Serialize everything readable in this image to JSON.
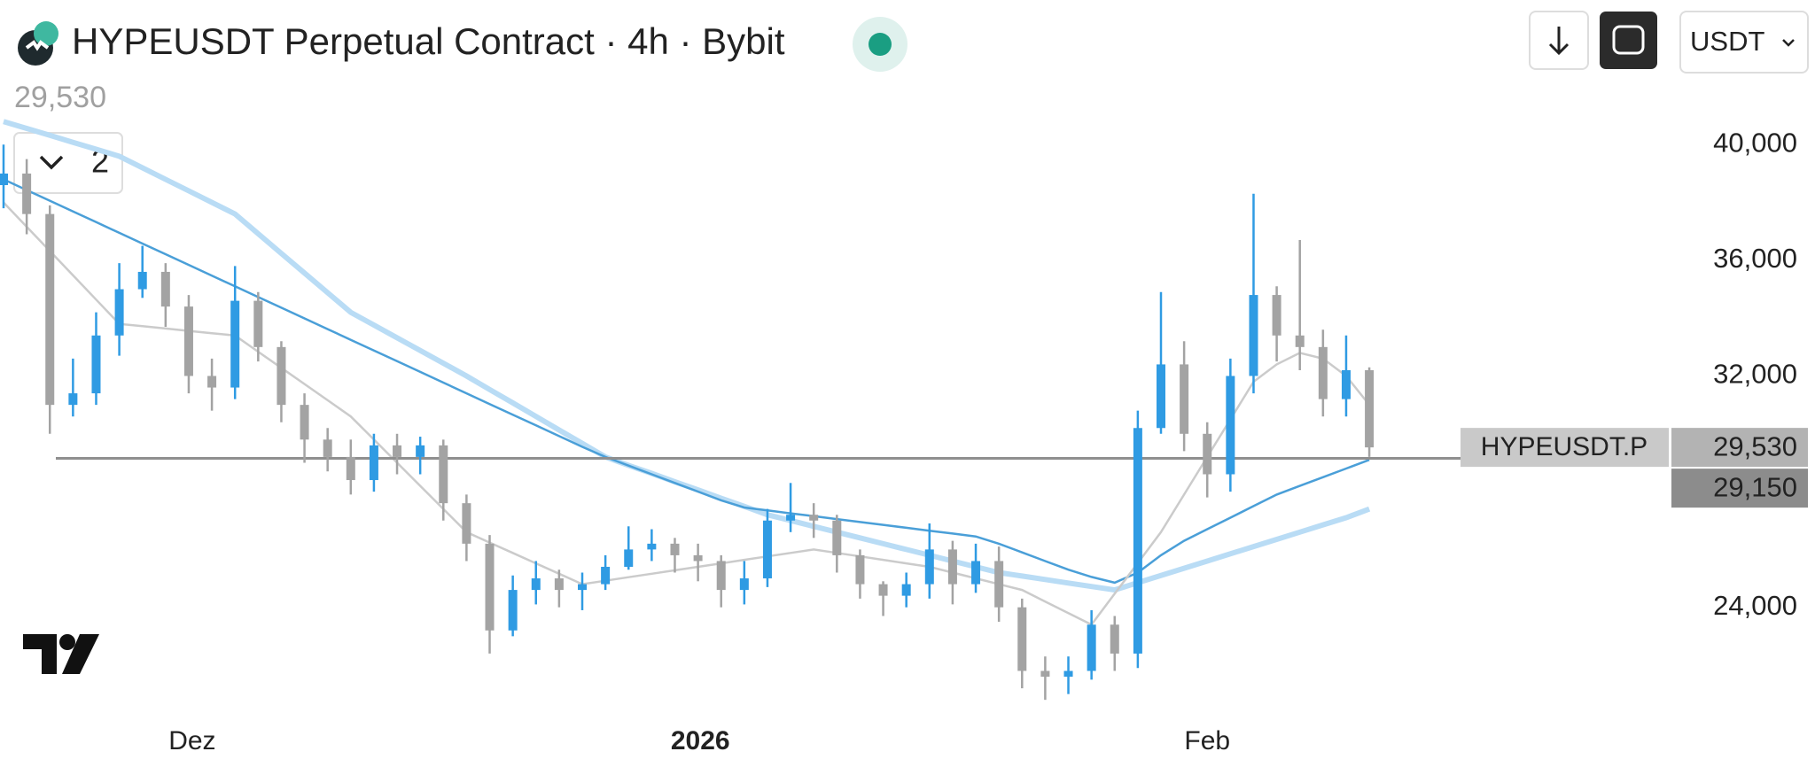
{
  "header": {
    "title": "HYPEUSDT Perpetual Contract · 4h · Bybit",
    "currency": "USDT",
    "indicator_count": "2"
  },
  "chart_data": {
    "type": "candlestick",
    "open": [
      38600,
      39000,
      37600,
      31000,
      31400,
      33400,
      35000,
      35600,
      34400,
      32000,
      31600,
      34600,
      33000,
      31000,
      29800,
      29200,
      28400,
      29600,
      29200,
      29600,
      27600,
      26200,
      23200,
      24600,
      25000,
      24600,
      24800,
      25400,
      26000,
      26200,
      25800,
      25600,
      24600,
      25000,
      27000,
      27200,
      27000,
      25800,
      24800,
      24400,
      24800,
      26000,
      24800,
      25600,
      24000,
      21800,
      21600,
      21800,
      23400,
      22400,
      30200,
      32400,
      30000,
      28600,
      32000,
      34800,
      33400,
      33000,
      31200,
      32200
    ],
    "high": [
      40000,
      39500,
      37900,
      32600,
      34200,
      35900,
      36500,
      35900,
      34800,
      32600,
      35800,
      34900,
      33200,
      31400,
      30200,
      29800,
      30000,
      30000,
      29900,
      29800,
      27900,
      26500,
      25100,
      25600,
      25300,
      25200,
      25800,
      26800,
      26700,
      26400,
      26200,
      25800,
      25600,
      27400,
      28300,
      27600,
      27200,
      26000,
      24900,
      25200,
      26900,
      26300,
      26200,
      26100,
      24300,
      22300,
      22300,
      23900,
      23700,
      30800,
      34900,
      33200,
      30400,
      32600,
      38300,
      35100,
      36700,
      33600,
      33400,
      32300
    ],
    "low": [
      37800,
      36900,
      30000,
      30600,
      31000,
      32700,
      34700,
      33700,
      31400,
      30800,
      31200,
      32500,
      30400,
      29000,
      28700,
      27900,
      28000,
      28600,
      28600,
      27000,
      25600,
      22400,
      23000,
      24100,
      24000,
      23900,
      24600,
      25300,
      25600,
      25200,
      24900,
      24000,
      24100,
      24700,
      26600,
      26400,
      25200,
      24300,
      23700,
      24000,
      24300,
      24100,
      24500,
      23500,
      21200,
      20800,
      21000,
      21500,
      21800,
      21900,
      30000,
      29400,
      27800,
      28000,
      31400,
      32500,
      32200,
      30600,
      30600,
      29200
    ],
    "close": [
      39000,
      37600,
      31000,
      31400,
      33400,
      35000,
      35600,
      34400,
      32000,
      31600,
      34600,
      33000,
      31000,
      29800,
      29200,
      28400,
      29600,
      29200,
      29600,
      27600,
      26200,
      23200,
      24600,
      25000,
      24600,
      24800,
      25400,
      26000,
      26200,
      25800,
      25600,
      24600,
      25000,
      27000,
      27200,
      27000,
      25800,
      24800,
      24400,
      24800,
      26000,
      24800,
      25600,
      24000,
      21800,
      21600,
      21800,
      23400,
      22400,
      30200,
      32400,
      30000,
      28600,
      32000,
      34800,
      33400,
      33000,
      31200,
      32200,
      29530
    ],
    "up_color": "#2f9be3",
    "down_color": "#a3a3a3",
    "moving_averages": [
      {
        "color": "#b9dcf5",
        "values": [
          40800,
          40560,
          40320,
          40080,
          39840,
          39600,
          39200,
          38800,
          38400,
          38000,
          37600,
          36920,
          36240,
          35560,
          34880,
          34200,
          33760,
          33320,
          32880,
          32440,
          32000,
          31530,
          31070,
          30600,
          30130,
          29670,
          29200,
          28910,
          28630,
          28340,
          28060,
          27770,
          27490,
          27200,
          27000,
          26800,
          26600,
          26400,
          26200,
          26000,
          25800,
          25600,
          25400,
          25200,
          25080,
          24960,
          24840,
          24720,
          24600,
          24850,
          25100,
          25350,
          25600,
          25850,
          26100,
          26350,
          26600,
          26850,
          27100,
          27400
        ]
      },
      {
        "color": "#4a9fd8",
        "values": [
          38800,
          38430,
          38060,
          37690,
          37320,
          36950,
          36580,
          36210,
          35840,
          35470,
          35100,
          34730,
          34360,
          33990,
          33620,
          33250,
          32880,
          32510,
          32140,
          31770,
          31400,
          31030,
          30660,
          30290,
          29920,
          29550,
          29200,
          28900,
          28600,
          28300,
          28000,
          27700,
          27450,
          27350,
          27250,
          27150,
          27050,
          26950,
          26850,
          26750,
          26650,
          26550,
          26450,
          26200,
          25900,
          25600,
          25300,
          25050,
          24850,
          25200,
          25800,
          26300,
          26700,
          27100,
          27500,
          27900,
          28200,
          28500,
          28800,
          29100
        ]
      },
      {
        "color": "#cbcbcb",
        "values": [
          38000,
          37160,
          36320,
          35480,
          34640,
          33800,
          33720,
          33640,
          33560,
          33480,
          33400,
          32840,
          32280,
          31720,
          31160,
          30600,
          29800,
          29000,
          28200,
          27400,
          26600,
          26240,
          25880,
          25520,
          25160,
          24800,
          24920,
          25040,
          25160,
          25280,
          25400,
          25520,
          25640,
          25760,
          25880,
          26000,
          25880,
          25760,
          25640,
          25520,
          25400,
          25200,
          25000,
          24800,
          24600,
          24200,
          23800,
          23400,
          24470,
          25530,
          26600,
          27900,
          29200,
          30500,
          31800,
          32400,
          32800,
          32600,
          32000,
          31000
        ]
      }
    ],
    "ylim": [
      18600,
      42600
    ],
    "yticks": [
      {
        "value": 24000,
        "label": "24,000"
      },
      {
        "value": 32000,
        "label": "32,000"
      },
      {
        "value": 36000,
        "label": "36,000"
      },
      {
        "value": 40000,
        "label": "40,000"
      }
    ],
    "xticks": [
      {
        "value": 8.15,
        "label": "Dez"
      },
      {
        "value": 30.1,
        "label": "2026"
      },
      {
        "value": 52,
        "label": "Feb"
      }
    ],
    "horizontal_line": {
      "value": 29150,
      "label": "29,150"
    },
    "last_price": {
      "value": 29530,
      "label": "29,530",
      "symbol": "HYPEUSDT.P"
    }
  }
}
